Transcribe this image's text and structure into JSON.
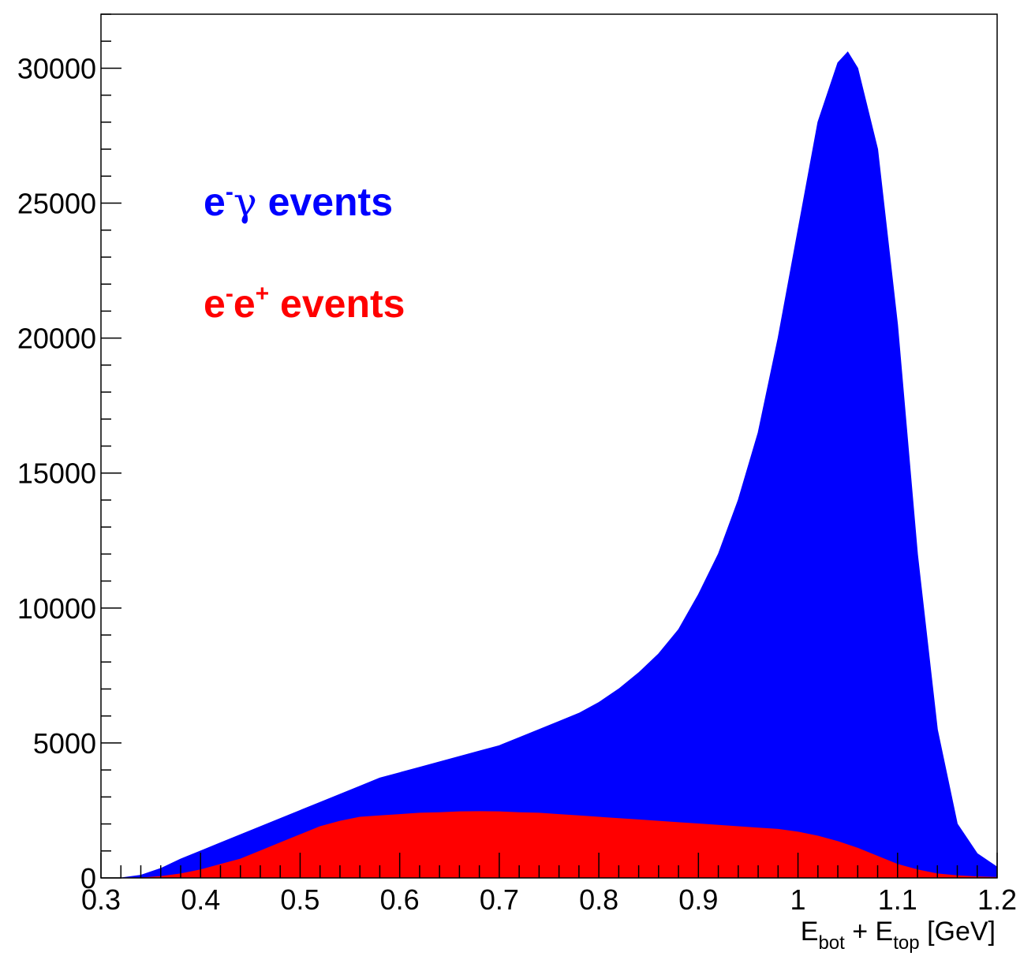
{
  "chart_data": {
    "type": "area",
    "xlabel": {
      "main1": "E",
      "sub1": "bot",
      "mid": " + E",
      "sub2": "top",
      "tail": " [GeV]"
    },
    "ylabel": "",
    "xlim": [
      0.3,
      1.2
    ],
    "ylim": [
      0,
      32000
    ],
    "x_ticks": [
      0.3,
      0.4,
      0.5,
      0.6,
      0.7,
      0.8,
      0.9,
      1.0,
      1.1,
      1.2
    ],
    "x_tick_labels": [
      "0.3",
      "0.4",
      "0.5",
      "0.6",
      "0.7",
      "0.8",
      "0.9",
      "1",
      "1.1",
      "1.2"
    ],
    "y_ticks": [
      0,
      5000,
      10000,
      15000,
      20000,
      25000,
      30000
    ],
    "y_tick_labels": [
      "0",
      "5000",
      "10000",
      "15000",
      "20000",
      "25000",
      "30000"
    ],
    "grid": false,
    "legend_placement": "top-left",
    "series": [
      {
        "name": "e⁻γ events",
        "legend": {
          "base": "e",
          "sup": "-",
          "greek": "γ",
          "rest": " events"
        },
        "color": "#0000ff",
        "x": [
          0.3,
          0.32,
          0.34,
          0.36,
          0.38,
          0.4,
          0.42,
          0.44,
          0.46,
          0.48,
          0.5,
          0.52,
          0.54,
          0.56,
          0.58,
          0.6,
          0.62,
          0.64,
          0.66,
          0.68,
          0.7,
          0.72,
          0.74,
          0.76,
          0.78,
          0.8,
          0.82,
          0.84,
          0.86,
          0.88,
          0.9,
          0.92,
          0.94,
          0.96,
          0.98,
          1.0,
          1.02,
          1.04,
          1.05,
          1.06,
          1.08,
          1.1,
          1.12,
          1.14,
          1.16,
          1.18,
          1.2
        ],
        "values": [
          0,
          0,
          100,
          350,
          700,
          1000,
          1300,
          1600,
          1900,
          2200,
          2500,
          2800,
          3100,
          3400,
          3700,
          3900,
          4100,
          4300,
          4500,
          4700,
          4900,
          5200,
          5500,
          5800,
          6100,
          6500,
          7000,
          7600,
          8300,
          9200,
          10500,
          12000,
          14000,
          16500,
          20000,
          24000,
          28000,
          30200,
          30600,
          30000,
          27000,
          20500,
          12000,
          5500,
          2000,
          900,
          400
        ]
      },
      {
        "name": "e⁻e⁺ events",
        "legend": {
          "base": "e",
          "sup": "-",
          "base2": "e",
          "sup2": "+",
          "rest": " events"
        },
        "color": "#ff0000",
        "x": [
          0.3,
          0.32,
          0.34,
          0.36,
          0.38,
          0.4,
          0.42,
          0.44,
          0.46,
          0.48,
          0.5,
          0.52,
          0.54,
          0.56,
          0.58,
          0.6,
          0.62,
          0.64,
          0.66,
          0.68,
          0.7,
          0.72,
          0.74,
          0.76,
          0.78,
          0.8,
          0.82,
          0.84,
          0.86,
          0.88,
          0.9,
          0.92,
          0.94,
          0.96,
          0.98,
          1.0,
          1.02,
          1.04,
          1.06,
          1.08,
          1.1,
          1.12,
          1.14,
          1.16,
          1.18,
          1.2
        ],
        "values": [
          0,
          0,
          0,
          50,
          150,
          300,
          500,
          700,
          1000,
          1300,
          1600,
          1900,
          2100,
          2250,
          2300,
          2350,
          2400,
          2420,
          2450,
          2460,
          2450,
          2420,
          2400,
          2350,
          2300,
          2250,
          2200,
          2150,
          2100,
          2050,
          2000,
          1950,
          1900,
          1850,
          1800,
          1700,
          1550,
          1350,
          1100,
          800,
          500,
          300,
          150,
          80,
          40,
          20
        ]
      }
    ]
  }
}
